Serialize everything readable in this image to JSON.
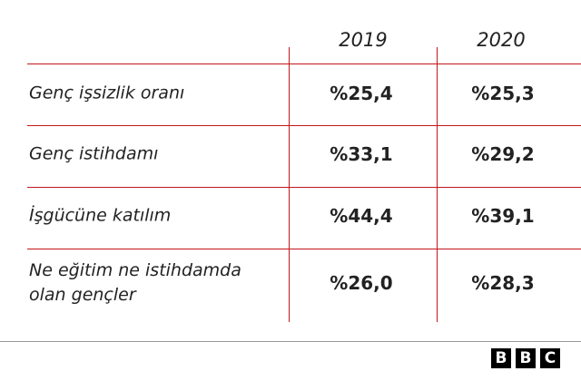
{
  "table": {
    "header": [
      "2019",
      "2020"
    ],
    "rows": [
      {
        "label": "Genç işsizlik oranı",
        "values": [
          "%25,4",
          "%25,3"
        ]
      },
      {
        "label": "Genç istihdamı",
        "values": [
          "%33,1",
          "%29,2"
        ]
      },
      {
        "label": "İşgücüne katılım",
        "values": [
          "%44,4",
          "%39,1"
        ]
      },
      {
        "label": "Ne eğitim ne istihdamda olan gençler",
        "values": [
          "%26,0",
          "%28,3"
        ]
      }
    ]
  },
  "logo": [
    "B",
    "B",
    "C"
  ]
}
